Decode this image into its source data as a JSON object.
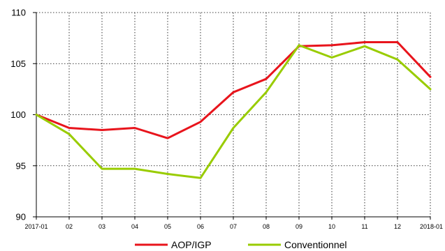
{
  "chart_data": {
    "type": "line",
    "title": "",
    "xlabel": "",
    "ylabel": "",
    "categories": [
      "2017-01",
      "02",
      "03",
      "04",
      "05",
      "06",
      "07",
      "08",
      "09",
      "10",
      "11",
      "12",
      "2018-01"
    ],
    "ylim": [
      90,
      110
    ],
    "yticks": [
      90,
      95,
      100,
      105,
      110
    ],
    "grid": true,
    "legend_position": "bottom",
    "series": [
      {
        "name": "AOP/IGP",
        "color": "#e8141c",
        "values": [
          100,
          98.7,
          98.5,
          98.7,
          97.7,
          99.3,
          102.2,
          103.5,
          106.7,
          106.8,
          107.1,
          107.1,
          103.7
        ]
      },
      {
        "name": "Conventionnel",
        "color": "#99cc00",
        "values": [
          100,
          98.1,
          94.7,
          94.7,
          94.2,
          93.8,
          98.7,
          102.2,
          106.8,
          105.6,
          106.7,
          105.4,
          102.5
        ]
      }
    ]
  }
}
